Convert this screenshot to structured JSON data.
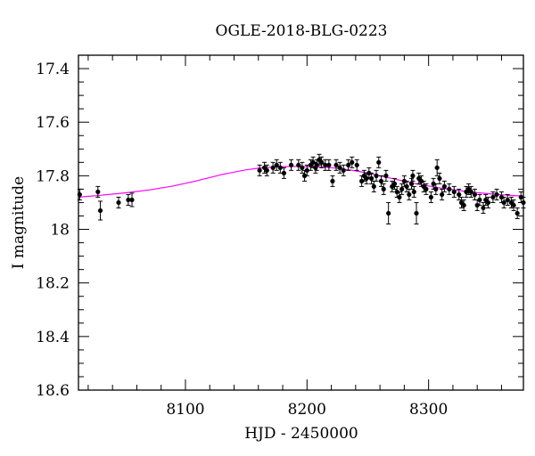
{
  "chart_data": {
    "type": "scatter",
    "title": "OGLE-2018-BLG-0223",
    "xlabel": "HJD - 2450000",
    "ylabel": "I magnitude",
    "xlim": [
      8012,
      8378
    ],
    "ylim": [
      18.6,
      17.35
    ],
    "y_inverted": true,
    "x_ticks": [
      8100,
      8200,
      8300
    ],
    "x_tick_labels": [
      "8100",
      "8200",
      "8300"
    ],
    "y_ticks": [
      17.4,
      17.6,
      17.8,
      18,
      18.2,
      18.4,
      18.6
    ],
    "y_tick_labels": [
      "17.4",
      "17.6",
      "17.8",
      "18",
      "18.2",
      "18.4",
      "18.6"
    ],
    "model_color": "#ff00ff",
    "model": {
      "name": "model",
      "x": [
        8012,
        8030,
        8050,
        8070,
        8090,
        8110,
        8130,
        8150,
        8160,
        8170,
        8180,
        8190,
        8200,
        8210,
        8220,
        8230,
        8240,
        8250,
        8260,
        8270,
        8280,
        8290,
        8300,
        8310,
        8320,
        8330,
        8340,
        8350,
        8360,
        8370,
        8378
      ],
      "y": [
        17.88,
        17.873,
        17.864,
        17.853,
        17.838,
        17.818,
        17.795,
        17.778,
        17.772,
        17.768,
        17.766,
        17.765,
        17.766,
        17.767,
        17.77,
        17.775,
        17.782,
        17.79,
        17.8,
        17.81,
        17.82,
        17.83,
        17.838,
        17.846,
        17.852,
        17.858,
        17.863,
        17.867,
        17.871,
        17.874,
        17.876
      ]
    },
    "series": [
      {
        "name": "data",
        "x": [
          8013,
          8028,
          8030,
          8045,
          8053,
          8056,
          8161,
          8165,
          8167,
          8172,
          8175,
          8178,
          8181,
          8187,
          8193,
          8196,
          8198,
          8200,
          8203,
          8205,
          8207,
          8208,
          8210,
          8212,
          8215,
          8218,
          8221,
          8224,
          8227,
          8230,
          8234,
          8237,
          8241,
          8245,
          8247,
          8249,
          8251,
          8253,
          8255,
          8257,
          8259,
          8261,
          8263,
          8265,
          8267,
          8270,
          8272,
          8274,
          8276,
          8278,
          8280,
          8282,
          8284,
          8286,
          8287,
          8288,
          8290,
          8292,
          8294,
          8296,
          8298,
          8302,
          8304,
          8306,
          8307,
          8309,
          8311,
          8313,
          8317,
          8321,
          8325,
          8327,
          8329,
          8331,
          8333,
          8335,
          8338,
          8340,
          8342,
          8345,
          8347,
          8349,
          8353,
          8356,
          8360,
          8362,
          8365,
          8368,
          8370,
          8373,
          8376,
          8378
        ],
        "y": [
          17.87,
          17.86,
          17.93,
          17.9,
          17.89,
          17.89,
          17.78,
          17.77,
          17.78,
          17.77,
          17.76,
          17.77,
          17.79,
          17.76,
          17.76,
          17.77,
          17.8,
          17.78,
          17.76,
          17.75,
          17.77,
          17.76,
          17.74,
          17.75,
          17.76,
          17.76,
          17.82,
          17.76,
          17.77,
          17.78,
          17.76,
          17.75,
          17.76,
          17.82,
          17.8,
          17.81,
          17.79,
          17.81,
          17.84,
          17.8,
          17.75,
          17.82,
          17.85,
          17.8,
          17.94,
          17.84,
          17.83,
          17.86,
          17.88,
          17.85,
          17.82,
          17.84,
          17.87,
          17.83,
          17.8,
          17.86,
          17.94,
          17.81,
          17.82,
          17.84,
          17.85,
          17.88,
          17.83,
          17.85,
          17.77,
          17.81,
          17.87,
          17.84,
          17.85,
          17.86,
          17.87,
          17.9,
          17.91,
          17.86,
          17.85,
          17.86,
          17.87,
          17.91,
          17.89,
          17.92,
          17.89,
          17.9,
          17.88,
          17.87,
          17.88,
          17.9,
          17.89,
          17.9,
          17.91,
          17.94,
          17.88,
          17.9
        ],
        "err": [
          0.02,
          0.02,
          0.035,
          0.02,
          0.02,
          0.025,
          0.02,
          0.02,
          0.02,
          0.02,
          0.02,
          0.02,
          0.02,
          0.02,
          0.02,
          0.02,
          0.02,
          0.02,
          0.02,
          0.02,
          0.02,
          0.02,
          0.02,
          0.02,
          0.02,
          0.02,
          0.02,
          0.02,
          0.02,
          0.02,
          0.02,
          0.02,
          0.02,
          0.02,
          0.02,
          0.02,
          0.02,
          0.02,
          0.02,
          0.02,
          0.02,
          0.02,
          0.02,
          0.02,
          0.04,
          0.02,
          0.02,
          0.02,
          0.02,
          0.02,
          0.02,
          0.02,
          0.02,
          0.02,
          0.02,
          0.02,
          0.04,
          0.02,
          0.02,
          0.02,
          0.02,
          0.02,
          0.02,
          0.02,
          0.03,
          0.02,
          0.02,
          0.02,
          0.02,
          0.02,
          0.02,
          0.02,
          0.02,
          0.02,
          0.02,
          0.02,
          0.02,
          0.02,
          0.02,
          0.02,
          0.02,
          0.02,
          0.02,
          0.02,
          0.02,
          0.02,
          0.02,
          0.02,
          0.02,
          0.02,
          0.02,
          0.02
        ]
      }
    ]
  }
}
